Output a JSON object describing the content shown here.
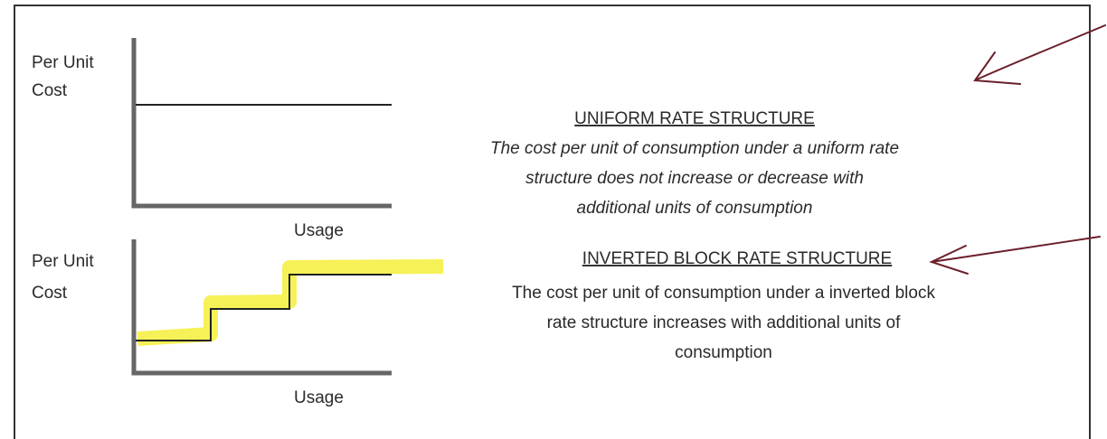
{
  "panels": [
    {
      "y_label": [
        "Per Unit",
        "Cost"
      ],
      "x_label": "Usage",
      "title": "UNIFORM RATE STRUCTURE",
      "description": [
        "The cost per unit of consumption under a uniform rate",
        "structure does not increase or decrease with",
        "additional units of consumption"
      ]
    },
    {
      "y_label": [
        "Per Unit",
        "Cost"
      ],
      "x_label": "Usage",
      "title": "INVERTED BLOCK RATE STRUCTURE",
      "description": [
        "The cost per unit of consumption under a inverted block",
        "rate structure increases with additional units of",
        "consumption"
      ]
    }
  ]
}
